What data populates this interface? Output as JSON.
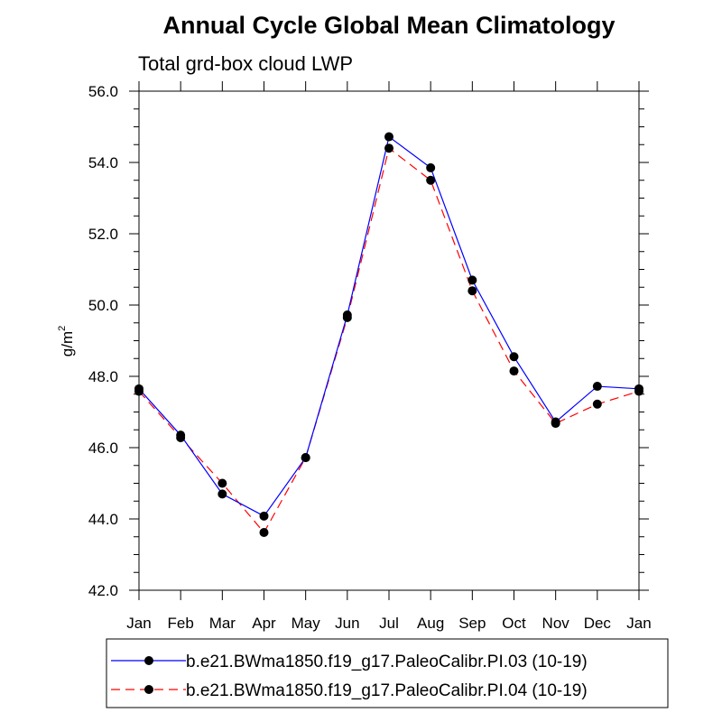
{
  "chart_data": {
    "type": "line",
    "title": "Annual Cycle Global Mean Climatology",
    "subtitle": "Total grd-box cloud LWP",
    "ylabel": "g/m",
    "ylabel_sup": "2",
    "xlabel": "",
    "categories": [
      "Jan",
      "Feb",
      "Mar",
      "Apr",
      "May",
      "Jun",
      "Jul",
      "Aug",
      "Sep",
      "Oct",
      "Nov",
      "Dec",
      "Jan"
    ],
    "ylim": [
      42.0,
      56.0
    ],
    "yticks": [
      "42.0",
      "44.0",
      "46.0",
      "48.0",
      "50.0",
      "52.0",
      "54.0",
      "56.0"
    ],
    "grid": false,
    "legend_position": "bottom",
    "series": [
      {
        "name": "b.e21.BWma1850.f19_g17.PaleoCalibr.PI.03 (10-19)",
        "color": "#0000ff",
        "dash": "solid",
        "values": [
          47.65,
          46.35,
          44.7,
          44.08,
          45.72,
          49.72,
          54.72,
          53.85,
          50.7,
          48.55,
          46.72,
          47.72,
          47.65
        ]
      },
      {
        "name": "b.e21.BWma1850.f19_g17.PaleoCalibr.PI.04 (10-19)",
        "color": "#ff0000",
        "dash": "dashed",
        "values": [
          47.58,
          46.28,
          45.0,
          43.62,
          45.72,
          49.65,
          54.4,
          53.5,
          50.4,
          48.15,
          46.68,
          47.22,
          47.58
        ]
      }
    ]
  }
}
